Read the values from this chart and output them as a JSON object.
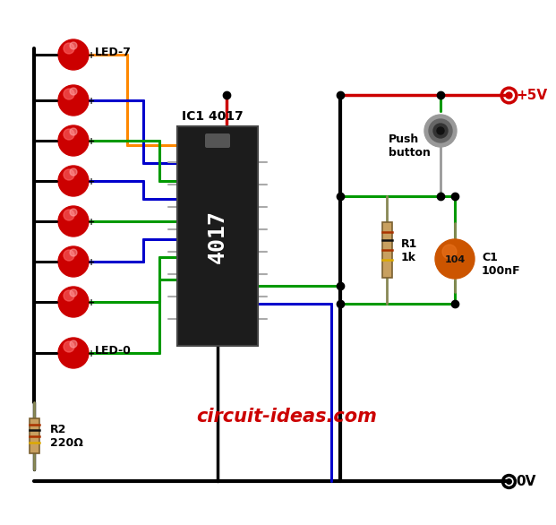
{
  "bg_color": "#ffffff",
  "fig_width": 5.96,
  "fig_height": 5.67,
  "wire_black": "#000000",
  "wire_red": "#cc0000",
  "wire_green": "#009900",
  "wire_blue": "#0000cc",
  "wire_orange": "#ff8800",
  "ic_color": "#1a1a1a",
  "resistor_body": "#c8a060",
  "capacitor_color": "#cc5500",
  "led_red": "#cc0000",
  "text_red": "#cc0000",
  "watermark": "circuit-ideas.com",
  "vplus_label": "+5V",
  "vgnd_label": "0V",
  "ic_label": "IC1 4017",
  "ic_sublabel": "4017",
  "r1_label": "R1\n1k",
  "r2_label": "R2\n220Ω",
  "c1_label": "C1\n100nF",
  "pushbtn_label": "Push\nbutton",
  "led7_label": "LED-7",
  "led0_label": "LED-0"
}
